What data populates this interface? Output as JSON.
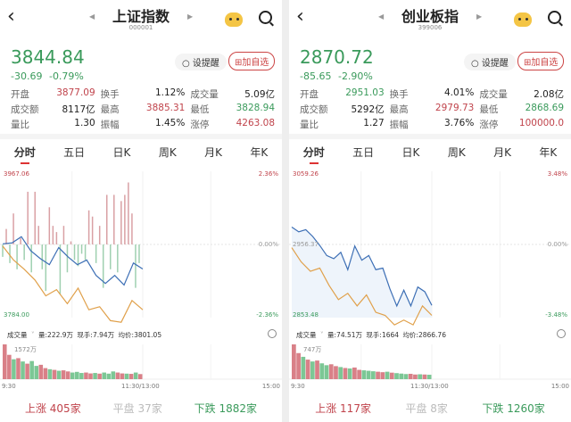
{
  "panels": [
    {
      "title": "上证指数",
      "code": "000001",
      "price": "3844.84",
      "change": "-30.69",
      "change_pct": "-0.79%",
      "remind_label": "设提醒",
      "add_label": "加自选",
      "stats": [
        [
          [
            "开盘",
            "3877.09",
            "red"
          ],
          [
            "换手",
            "1.12%",
            ""
          ],
          [
            "成交量",
            "5.09亿",
            ""
          ]
        ],
        [
          [
            "成交额",
            "8117亿",
            ""
          ],
          [
            "最高",
            "3885.31",
            "red"
          ],
          [
            "最低",
            "3828.94",
            "green"
          ]
        ],
        [
          [
            "量比",
            "1.30",
            ""
          ],
          [
            "振幅",
            "1.45%",
            ""
          ],
          [
            "涨停",
            "4263.08",
            "red"
          ]
        ]
      ],
      "tabs": [
        "分时",
        "五日",
        "日K",
        "周K",
        "月K",
        "年K"
      ],
      "axis": {
        "top": "3967.06",
        "bottom": "3784.00",
        "mid": "",
        "top_pct": "2.36%",
        "mid_pct": "0.00%",
        "bottom_pct": "-2.36%"
      },
      "volume_header": {
        "label": "成交量",
        "vol": "量:222.9万",
        "now": "现手:7.94万",
        "avg": "均价:3801.05"
      },
      "vol_max_label": "1572万",
      "times": [
        "9:30",
        "11:30/13:00",
        "15:00"
      ],
      "breadth": {
        "up": "上涨 405家",
        "flat": "平盘 37家",
        "down": "下跌 1882家"
      }
    },
    {
      "title": "创业板指",
      "code": "399006",
      "price": "2870.72",
      "change": "-85.65",
      "change_pct": "-2.90%",
      "remind_label": "设提醒",
      "add_label": "加自选",
      "stats": [
        [
          [
            "开盘",
            "2951.03",
            "green"
          ],
          [
            "换手",
            "4.01%",
            ""
          ],
          [
            "成交量",
            "2.08亿",
            ""
          ]
        ],
        [
          [
            "成交额",
            "5292亿",
            ""
          ],
          [
            "最高",
            "2979.73",
            "red"
          ],
          [
            "最低",
            "2868.69",
            "green"
          ]
        ],
        [
          [
            "量比",
            "1.27",
            ""
          ],
          [
            "振幅",
            "3.76%",
            ""
          ],
          [
            "涨停",
            "100000.0",
            "red"
          ]
        ]
      ],
      "tabs": [
        "分时",
        "五日",
        "日K",
        "周K",
        "月K",
        "年K"
      ],
      "axis": {
        "top": "3059.26",
        "bottom": "2853.48",
        "mid": "2956.37",
        "top_pct": "3.48%",
        "mid_pct": "0.00%",
        "bottom_pct": "-3.48%"
      },
      "volume_header": {
        "label": "成交量",
        "vol": "量:74.51万",
        "now": "现手:1664",
        "avg": "均价:2866.76"
      },
      "vol_max_label": "747万",
      "times": [
        "9:30",
        "11:30/13:00",
        "15:00"
      ],
      "breadth": {
        "up": "上涨 117家",
        "flat": "平盘 8家",
        "down": "下跌 1260家"
      }
    }
  ],
  "colors": {
    "up": "#c0434b",
    "down": "#3a9a5b",
    "price_line": "#3d6fb5",
    "avg_line": "#e0a04a"
  },
  "chart_data": [
    {
      "type": "line",
      "ylim": [
        3784.0,
        3967.06
      ],
      "prev_close": 3875.53,
      "series": [
        {
          "values": [
            3876.3,
            3877.5,
            3885.2,
            3867.8,
            3858.1,
            3850.3,
            3871.6,
            3860.0,
            3850.3,
            3856.1,
            3836.8,
            3826.7,
            3836.8,
            3824.8,
            3852.3,
            3844.8
          ]
        },
        {
          "values": [
            3873.6,
            3856.2,
            3844.5,
            3831.0,
            3811.2,
            3819.0,
            3801.5,
            3820.9,
            3793.8,
            3797.6,
            3780.2,
            3778.2,
            3805.4,
            3793.8
          ]
        }
      ],
      "breadth_bars_pct": [
        -0.4,
        0.5,
        -0.6,
        1.0,
        -0.8,
        0.2,
        -0.5,
        1.7,
        -0.9,
        1.7,
        0.6,
        -0.8,
        -1.5,
        1.2,
        0.6,
        0.4,
        -1.6,
        0.6,
        -0.9,
        0.1,
        -0.5,
        -0.7,
        -0.3,
        -0.5,
        1.1,
        0.9,
        -0.6,
        0.6,
        -1.4,
        1.6,
        -0.8,
        1.6,
        -0.9,
        1.4,
        1.6,
        2.0,
        1.0,
        -1.4,
        -0.6
      ],
      "volume": [
        1572,
        1100,
        900,
        950,
        800,
        700,
        820,
        600,
        650,
        500,
        450,
        420,
        380,
        400,
        350,
        300,
        330,
        280,
        300,
        260,
        280,
        250,
        300,
        250,
        350,
        300,
        260,
        250,
        240,
        300,
        230
      ],
      "volume_colors": "rrgrgrggrrgrgrrgggrrgrgggrrgrgr"
    },
    {
      "type": "line",
      "ylim": [
        2853.48,
        3059.26
      ],
      "prev_close": 2956.37,
      "series": [
        {
          "values": [
            2980.8,
            2974.1,
            2977.2,
            2967.5,
            2955.0,
            2940.8,
            2936.4,
            2945.3,
            2920.9,
            2954.2,
            2934.2,
            2940.8,
            2920.9,
            2923.1,
            2894.3,
            2869.9,
            2892.1,
            2869.9,
            2896.5,
            2889.9,
            2870.7
          ]
        },
        {
          "values": [
            2951.9,
            2932.0,
            2918.7,
            2923.1,
            2898.7,
            2878.8,
            2887.6,
            2869.9,
            2885.4,
            2861.0,
            2856.6,
            2843.3,
            2850.0,
            2843.3,
            2869.9,
            2856.6
          ]
        }
      ],
      "breadth_bars_pct": [],
      "volume": [
        747,
        560,
        480,
        420,
        380,
        400,
        340,
        300,
        320,
        280,
        260,
        240,
        230,
        250,
        200,
        190,
        180,
        170,
        160,
        150,
        160,
        140,
        130,
        120,
        110,
        115,
        100,
        105,
        100,
        95
      ],
      "volume_colors": "rrgrgrggrrgrgrrgggrrgrgggrrgrg"
    }
  ]
}
